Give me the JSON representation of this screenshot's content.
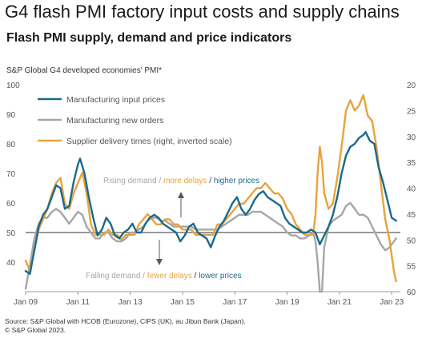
{
  "title": "G4 flash PMI factory input costs and supply chains",
  "subtitle": "Flash PMI supply, demand and price indicators",
  "chart_note": "S&P Global G4 developed economies' PMI*",
  "source_lines": [
    "Source: S&P Global with HCOB (Eurozone), CIPS (UK), au Jibun Bank (Japan).",
    "© S&P Global 2023."
  ],
  "annotations": {
    "top": [
      {
        "text": "Rising demand",
        "color": "#a6a6a6"
      },
      {
        "text": " / ",
        "color": "#a6a6a6"
      },
      {
        "text": "more delays",
        "color": "#e8a33d"
      },
      {
        "text": " / ",
        "color": "#333333"
      },
      {
        "text": "higher prices",
        "color": "#1b6a8a"
      }
    ],
    "bottom": [
      {
        "text": "Falling demand",
        "color": "#a6a6a6"
      },
      {
        "text": " / ",
        "color": "#a6a6a6"
      },
      {
        "text": "fewer delays",
        "color": "#e8a33d"
      },
      {
        "text": " / ",
        "color": "#333333"
      },
      {
        "text": "lower prices",
        "color": "#1b6a8a"
      }
    ]
  },
  "chart_data": {
    "type": "line",
    "x_ticks": [
      "Jan 09",
      "Jan 11",
      "Jan 13",
      "Jan 15",
      "Jan 17",
      "Jan 19",
      "Jan 21",
      "Jan 23"
    ],
    "y_left": {
      "min": 30,
      "max": 100,
      "ticks": [
        40,
        50,
        60,
        70,
        80,
        90,
        100
      ]
    },
    "y_right": {
      "min": 20,
      "max": 60,
      "inverted": true,
      "ticks": [
        20,
        25,
        30,
        35,
        40,
        45,
        50,
        55,
        60
      ]
    },
    "reference_line": 50,
    "series": [
      {
        "name": "Manufacturing input prices",
        "color": "#1b6a8a",
        "axis": "left",
        "points": [
          [
            "2009-01",
            37
          ],
          [
            "2009-03",
            36
          ],
          [
            "2009-05",
            44
          ],
          [
            "2009-07",
            52
          ],
          [
            "2009-09",
            56
          ],
          [
            "2009-11",
            58
          ],
          [
            "2010-01",
            62
          ],
          [
            "2010-03",
            66
          ],
          [
            "2010-05",
            65
          ],
          [
            "2010-07",
            58
          ],
          [
            "2010-09",
            59
          ],
          [
            "2010-11",
            67
          ],
          [
            "2011-01",
            73
          ],
          [
            "2011-02",
            75
          ],
          [
            "2011-04",
            70
          ],
          [
            "2011-06",
            62
          ],
          [
            "2011-08",
            55
          ],
          [
            "2011-10",
            49
          ],
          [
            "2011-12",
            51
          ],
          [
            "2012-02",
            55
          ],
          [
            "2012-04",
            53
          ],
          [
            "2012-06",
            49
          ],
          [
            "2012-08",
            48
          ],
          [
            "2012-10",
            50
          ],
          [
            "2012-12",
            51
          ],
          [
            "2013-02",
            53
          ],
          [
            "2013-04",
            50
          ],
          [
            "2013-06",
            50
          ],
          [
            "2013-08",
            53
          ],
          [
            "2013-10",
            55
          ],
          [
            "2013-12",
            56
          ],
          [
            "2014-02",
            55
          ],
          [
            "2014-04",
            53
          ],
          [
            "2014-06",
            52
          ],
          [
            "2014-08",
            51
          ],
          [
            "2014-10",
            50
          ],
          [
            "2014-12",
            47
          ],
          [
            "2015-02",
            49
          ],
          [
            "2015-04",
            52
          ],
          [
            "2015-06",
            53
          ],
          [
            "2015-08",
            50
          ],
          [
            "2015-10",
            49
          ],
          [
            "2015-12",
            48
          ],
          [
            "2016-02",
            45
          ],
          [
            "2016-04",
            49
          ],
          [
            "2016-06",
            52
          ],
          [
            "2016-08",
            54
          ],
          [
            "2016-10",
            57
          ],
          [
            "2016-12",
            60
          ],
          [
            "2017-02",
            62
          ],
          [
            "2017-04",
            58
          ],
          [
            "2017-06",
            56
          ],
          [
            "2017-08",
            58
          ],
          [
            "2017-10",
            61
          ],
          [
            "2017-12",
            63
          ],
          [
            "2018-02",
            64
          ],
          [
            "2018-04",
            62
          ],
          [
            "2018-06",
            61
          ],
          [
            "2018-08",
            60
          ],
          [
            "2018-10",
            59
          ],
          [
            "2018-12",
            55
          ],
          [
            "2019-02",
            53
          ],
          [
            "2019-04",
            52
          ],
          [
            "2019-06",
            51
          ],
          [
            "2019-08",
            50
          ],
          [
            "2019-10",
            50
          ],
          [
            "2019-12",
            51
          ],
          [
            "2020-02",
            50
          ],
          [
            "2020-04",
            46
          ],
          [
            "2020-06",
            49
          ],
          [
            "2020-08",
            52
          ],
          [
            "2020-10",
            56
          ],
          [
            "2020-12",
            62
          ],
          [
            "2021-02",
            70
          ],
          [
            "2021-04",
            76
          ],
          [
            "2021-06",
            79
          ],
          [
            "2021-08",
            80
          ],
          [
            "2021-10",
            82
          ],
          [
            "2021-12",
            83
          ],
          [
            "2022-01",
            84
          ],
          [
            "2022-03",
            81
          ],
          [
            "2022-05",
            80
          ],
          [
            "2022-07",
            72
          ],
          [
            "2022-09",
            67
          ],
          [
            "2022-11",
            61
          ],
          [
            "2023-01",
            55
          ],
          [
            "2023-03",
            54
          ]
        ]
      },
      {
        "name": "Manufacturing new orders",
        "color": "#a6a6a6",
        "axis": "left",
        "points": [
          [
            "2009-01",
            31
          ],
          [
            "2009-03",
            39
          ],
          [
            "2009-05",
            48
          ],
          [
            "2009-07",
            53
          ],
          [
            "2009-09",
            55
          ],
          [
            "2009-11",
            55
          ],
          [
            "2010-01",
            57
          ],
          [
            "2010-03",
            58
          ],
          [
            "2010-05",
            57
          ],
          [
            "2010-07",
            55
          ],
          [
            "2010-09",
            53
          ],
          [
            "2010-11",
            55
          ],
          [
            "2011-01",
            57
          ],
          [
            "2011-03",
            56
          ],
          [
            "2011-05",
            52
          ],
          [
            "2011-07",
            50
          ],
          [
            "2011-09",
            48
          ],
          [
            "2011-11",
            48
          ],
          [
            "2012-01",
            50
          ],
          [
            "2012-03",
            50
          ],
          [
            "2012-05",
            48
          ],
          [
            "2012-07",
            47
          ],
          [
            "2012-09",
            47
          ],
          [
            "2012-11",
            48
          ],
          [
            "2013-01",
            50
          ],
          [
            "2013-03",
            50
          ],
          [
            "2013-05",
            51
          ],
          [
            "2013-07",
            52
          ],
          [
            "2013-09",
            54
          ],
          [
            "2013-11",
            55
          ],
          [
            "2014-01",
            55
          ],
          [
            "2014-03",
            54
          ],
          [
            "2014-05",
            54
          ],
          [
            "2014-07",
            53
          ],
          [
            "2014-09",
            52
          ],
          [
            "2014-11",
            52
          ],
          [
            "2015-01",
            52
          ],
          [
            "2015-03",
            52
          ],
          [
            "2015-05",
            52
          ],
          [
            "2015-07",
            51
          ],
          [
            "2015-09",
            51
          ],
          [
            "2015-11",
            51
          ],
          [
            "2016-01",
            51
          ],
          [
            "2016-03",
            51
          ],
          [
            "2016-05",
            51
          ],
          [
            "2016-07",
            52
          ],
          [
            "2016-09",
            53
          ],
          [
            "2016-11",
            54
          ],
          [
            "2017-01",
            55
          ],
          [
            "2017-03",
            56
          ],
          [
            "2017-05",
            56
          ],
          [
            "2017-07",
            56
          ],
          [
            "2017-09",
            57
          ],
          [
            "2017-11",
            57
          ],
          [
            "2018-01",
            57
          ],
          [
            "2018-03",
            56
          ],
          [
            "2018-05",
            55
          ],
          [
            "2018-07",
            54
          ],
          [
            "2018-09",
            53
          ],
          [
            "2018-11",
            52
          ],
          [
            "2019-01",
            50
          ],
          [
            "2019-03",
            49
          ],
          [
            "2019-05",
            49
          ],
          [
            "2019-07",
            48
          ],
          [
            "2019-09",
            48
          ],
          [
            "2019-11",
            49
          ],
          [
            "2020-01",
            50
          ],
          [
            "2020-02",
            47
          ],
          [
            "2020-03",
            40
          ],
          [
            "2020-04",
            30
          ],
          [
            "2020-05",
            30
          ],
          [
            "2020-06",
            45
          ],
          [
            "2020-08",
            52
          ],
          [
            "2020-10",
            54
          ],
          [
            "2020-12",
            55
          ],
          [
            "2021-02",
            56
          ],
          [
            "2021-04",
            59
          ],
          [
            "2021-06",
            60
          ],
          [
            "2021-08",
            58
          ],
          [
            "2021-10",
            56
          ],
          [
            "2021-12",
            56
          ],
          [
            "2022-02",
            55
          ],
          [
            "2022-04",
            52
          ],
          [
            "2022-06",
            49
          ],
          [
            "2022-08",
            46
          ],
          [
            "2022-10",
            44
          ],
          [
            "2022-12",
            45
          ],
          [
            "2023-02",
            47
          ],
          [
            "2023-03",
            48
          ]
        ]
      },
      {
        "name": "Supplier delivery times (right, inverted scale)",
        "color": "#e8a33d",
        "axis": "right",
        "points": [
          [
            "2009-01",
            54
          ],
          [
            "2009-03",
            56
          ],
          [
            "2009-05",
            52
          ],
          [
            "2009-07",
            48
          ],
          [
            "2009-09",
            46
          ],
          [
            "2009-11",
            44
          ],
          [
            "2010-01",
            41
          ],
          [
            "2010-03",
            39
          ],
          [
            "2010-05",
            38
          ],
          [
            "2010-07",
            43
          ],
          [
            "2010-09",
            44
          ],
          [
            "2010-11",
            41
          ],
          [
            "2011-01",
            39
          ],
          [
            "2011-03",
            37
          ],
          [
            "2011-05",
            41
          ],
          [
            "2011-07",
            47
          ],
          [
            "2011-09",
            49
          ],
          [
            "2011-11",
            49
          ],
          [
            "2012-01",
            49
          ],
          [
            "2012-03",
            48
          ],
          [
            "2012-05",
            49
          ],
          [
            "2012-07",
            49
          ],
          [
            "2012-09",
            50
          ],
          [
            "2012-11",
            49
          ],
          [
            "2013-01",
            49
          ],
          [
            "2013-03",
            49
          ],
          [
            "2013-05",
            47
          ],
          [
            "2013-07",
            46
          ],
          [
            "2013-09",
            45
          ],
          [
            "2013-11",
            46
          ],
          [
            "2014-01",
            47
          ],
          [
            "2014-03",
            47
          ],
          [
            "2014-05",
            46
          ],
          [
            "2014-07",
            46
          ],
          [
            "2014-09",
            47
          ],
          [
            "2014-11",
            47
          ],
          [
            "2015-01",
            48
          ],
          [
            "2015-03",
            48
          ],
          [
            "2015-05",
            48
          ],
          [
            "2015-07",
            49
          ],
          [
            "2015-09",
            49
          ],
          [
            "2015-11",
            49
          ],
          [
            "2016-01",
            49
          ],
          [
            "2016-03",
            49
          ],
          [
            "2016-05",
            47
          ],
          [
            "2016-07",
            47
          ],
          [
            "2016-09",
            46
          ],
          [
            "2016-11",
            45
          ],
          [
            "2017-01",
            44
          ],
          [
            "2017-03",
            43
          ],
          [
            "2017-05",
            43
          ],
          [
            "2017-07",
            42
          ],
          [
            "2017-09",
            41
          ],
          [
            "2017-11",
            40
          ],
          [
            "2018-01",
            40
          ],
          [
            "2018-03",
            39
          ],
          [
            "2018-05",
            40
          ],
          [
            "2018-07",
            41
          ],
          [
            "2018-09",
            41
          ],
          [
            "2018-11",
            42
          ],
          [
            "2019-01",
            44
          ],
          [
            "2019-03",
            45
          ],
          [
            "2019-05",
            47
          ],
          [
            "2019-07",
            48
          ],
          [
            "2019-09",
            49
          ],
          [
            "2019-11",
            49
          ],
          [
            "2020-01",
            49
          ],
          [
            "2020-02",
            45
          ],
          [
            "2020-03",
            37
          ],
          [
            "2020-04",
            32
          ],
          [
            "2020-05",
            35
          ],
          [
            "2020-06",
            41
          ],
          [
            "2020-08",
            44
          ],
          [
            "2020-10",
            43
          ],
          [
            "2020-12",
            38
          ],
          [
            "2021-02",
            32
          ],
          [
            "2021-04",
            25
          ],
          [
            "2021-06",
            23
          ],
          [
            "2021-08",
            25
          ],
          [
            "2021-10",
            24
          ],
          [
            "2021-12",
            22
          ],
          [
            "2022-02",
            26
          ],
          [
            "2022-04",
            27
          ],
          [
            "2022-06",
            32
          ],
          [
            "2022-08",
            39
          ],
          [
            "2022-10",
            46
          ],
          [
            "2022-12",
            50
          ],
          [
            "2023-01",
            53
          ],
          [
            "2023-02",
            56
          ],
          [
            "2023-03",
            58
          ]
        ]
      }
    ]
  }
}
